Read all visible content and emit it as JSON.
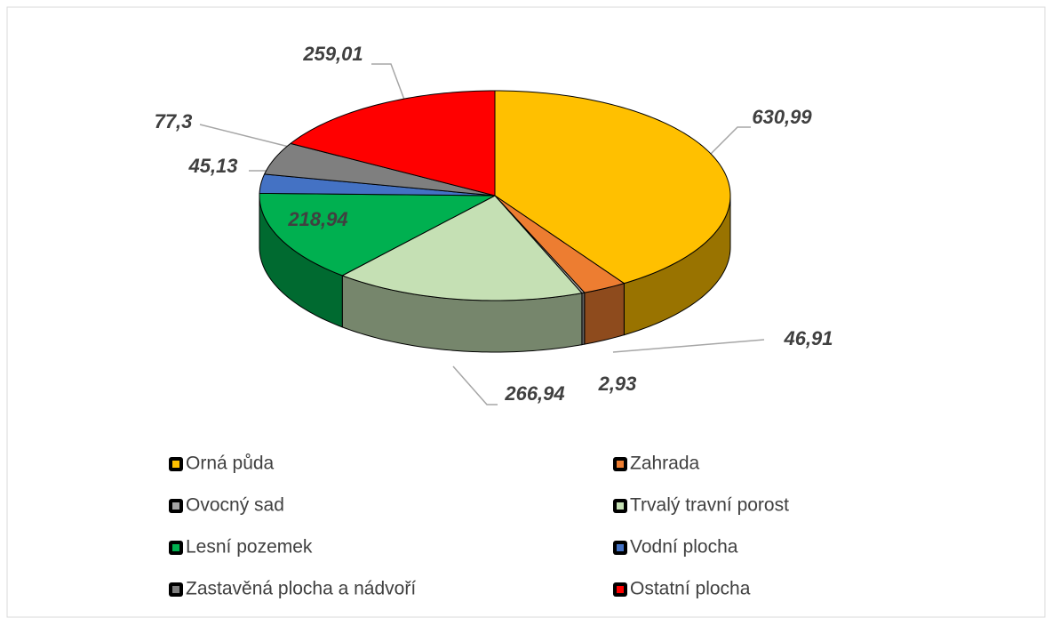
{
  "chart_data": {
    "type": "pie",
    "categories": [
      "Orná půda",
      "Zahrada",
      "Ovocný sad",
      "Trvalý travní porost",
      "Lesní pozemek",
      "Vodní plocha",
      "Zastavěná plocha a nádvoří",
      "Ostatní plocha"
    ],
    "values": [
      630.99,
      46.91,
      2.93,
      266.94,
      218.94,
      45.13,
      77.3,
      259.01
    ],
    "value_labels": [
      "630,99",
      "46,91",
      "2,93",
      "266,94",
      "218,94",
      "45,13",
      "77,3",
      "259,01"
    ],
    "colors": [
      "#FFC000",
      "#ED7D31",
      "#A5A5A5",
      "#C5E0B4",
      "#00B050",
      "#4472C4",
      "#7F7F7F",
      "#FF0000"
    ]
  }
}
